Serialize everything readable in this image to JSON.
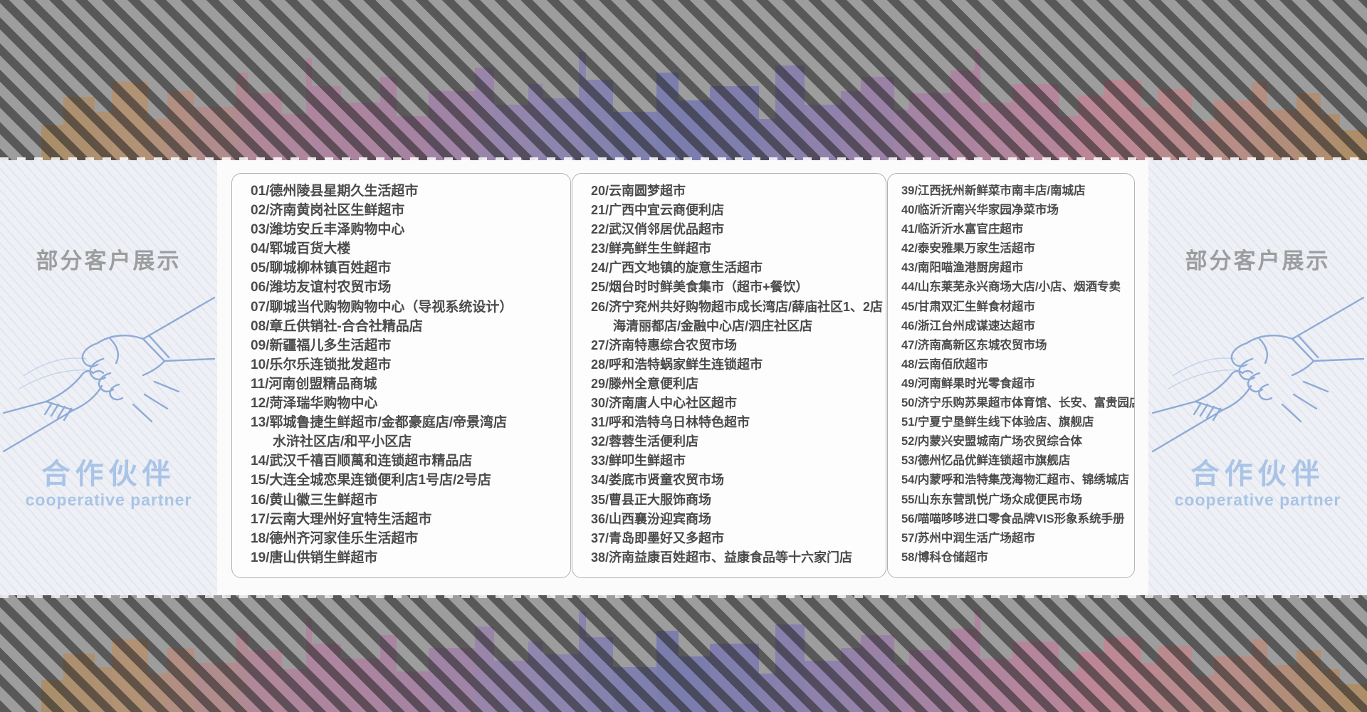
{
  "side_panel": {
    "header": "部分客户展示",
    "title": "合作伙伴",
    "subtitle": "cooperative partner",
    "header_color": "#9c9d9e",
    "accent_color": "#a9c4e6"
  },
  "decor": {
    "list_text_color": "#4c4a4a",
    "banner_base": "#9a9a9a",
    "stripe_dark": "rgba(40,40,40,0.58)",
    "skyline_palette": [
      "#a1885e",
      "#b08f72",
      "#ad8398",
      "#a57f9f",
      "#8a82ac",
      "#7479aa",
      "#8a7da8",
      "#a8809d",
      "#bb8294",
      "#b58a84",
      "#a98a60"
    ]
  },
  "partners": {
    "columns": [
      {
        "items": [
          {
            "num": "01",
            "name": "德州陵县星期久生活超市"
          },
          {
            "num": "02",
            "name": "济南黄岗社区生鲜超市"
          },
          {
            "num": "03",
            "name": "潍坊安丘丰泽购物中心"
          },
          {
            "num": "04",
            "name": "郓城百货大楼"
          },
          {
            "num": "05",
            "name": "聊城柳林镇百姓超市"
          },
          {
            "num": "06",
            "name": "潍坊友谊村农贸市场"
          },
          {
            "num": "07",
            "name": "聊城当代购物购物中心（导视系统设计）"
          },
          {
            "num": "08",
            "name": "章丘供销社-合合社精品店"
          },
          {
            "num": "09",
            "name": "新疆福儿多生活超市"
          },
          {
            "num": "10",
            "name": "乐尔乐连锁批发超市"
          },
          {
            "num": "11",
            "name": "河南创盟精品商城"
          },
          {
            "num": "12",
            "name": "菏泽瑞华购物中心"
          },
          {
            "num": "13",
            "name": "郓城鲁捷生鲜超市/金都豪庭店/帝景湾店",
            "cont": "水浒社区店/和平小区店"
          },
          {
            "num": "14",
            "name": "武汉千禧百顺萬和连锁超市精品店"
          },
          {
            "num": "15",
            "name": "大连全城恋果连锁便利店1号店/2号店"
          },
          {
            "num": "16",
            "name": "黄山徽三生鲜超市"
          },
          {
            "num": "17",
            "name": "云南大理州好宜特生活超市"
          },
          {
            "num": "18",
            "name": "德州齐河家佳乐生活超市"
          },
          {
            "num": "19",
            "name": "唐山供销生鲜超市"
          }
        ]
      },
      {
        "items": [
          {
            "num": "20",
            "name": "云南圆梦超市"
          },
          {
            "num": "21",
            "name": "广西中宜云商便利店"
          },
          {
            "num": "22",
            "name": "武汉俏邻居优品超市"
          },
          {
            "num": "23",
            "name": "鲜亮鲜生生鲜超市"
          },
          {
            "num": "24",
            "name": "广西文地镇的旋意生活超市"
          },
          {
            "num": "25",
            "name": "烟台时时鲜美食集市（超市+餐饮）"
          },
          {
            "num": "26",
            "name": "济宁兖州共好购物超市成长湾店/薛庙社区1、2店",
            "cont": "海清丽都店/金融中心店/泗庄社区店"
          },
          {
            "num": "27",
            "name": "济南特惠综合农贸市场"
          },
          {
            "num": "28",
            "name": "呼和浩特蜗家鲜生连锁超市"
          },
          {
            "num": "29",
            "name": "滕州全意便利店"
          },
          {
            "num": "30",
            "name": "济南唐人中心社区超市"
          },
          {
            "num": "31",
            "name": "呼和浩特乌日林特色超市"
          },
          {
            "num": "32",
            "name": "蓉蓉生活便利店"
          },
          {
            "num": "33",
            "name": "鲜叩生鲜超市"
          },
          {
            "num": "34",
            "name": "娄底市贤童农贸市场"
          },
          {
            "num": "35",
            "name": "曹县正大服饰商场"
          },
          {
            "num": "36",
            "name": "山西襄汾迎宾商场"
          },
          {
            "num": "37",
            "name": "青岛即墨好又多超市"
          },
          {
            "num": "38",
            "name": "济南益康百姓超市、益康食品等十六家门店"
          }
        ]
      },
      {
        "items": [
          {
            "num": "39",
            "name": "江西抚州新鲜菜市南丰店/南城店"
          },
          {
            "num": "40",
            "name": "临沂沂南兴华家园净菜市场"
          },
          {
            "num": "41",
            "name": "临沂沂水富官庄超市"
          },
          {
            "num": "42",
            "name": "泰安雅果万家生活超市"
          },
          {
            "num": "43",
            "name": "南阳喵渔港厨房超市"
          },
          {
            "num": "44",
            "name": "山东莱芜永兴商场大店/小店、烟酒专卖"
          },
          {
            "num": "45",
            "name": "甘肃双汇生鲜食材超市"
          },
          {
            "num": "46",
            "name": "浙江台州成谋速达超市"
          },
          {
            "num": "47",
            "name": "济南高新区东城农贸市场"
          },
          {
            "num": "48",
            "name": "云南佰欣超市"
          },
          {
            "num": "49",
            "name": "河南鲜果时光零食超市"
          },
          {
            "num": "50",
            "name": "济宁乐购苏果超市体育馆、长安、富贵园店"
          },
          {
            "num": "51",
            "name": "宁夏宁垦鲜生线下体验店、旗舰店"
          },
          {
            "num": "52",
            "name": "内蒙兴安盟城南广场农贸综合体"
          },
          {
            "num": "53",
            "name": "德州忆品优鲜连锁超市旗舰店"
          },
          {
            "num": "54",
            "name": "内蒙呼和浩特集茂海物汇超市、锦绣城店"
          },
          {
            "num": "55",
            "name": "山东东营凯悦广场众成便民市场"
          },
          {
            "num": "56",
            "name": "喵喵哆哆进口零食品牌VIS形象系统手册"
          },
          {
            "num": "57",
            "name": "苏州中润生活广场超市"
          },
          {
            "num": "58",
            "name": "博科仓储超市"
          }
        ]
      }
    ]
  }
}
